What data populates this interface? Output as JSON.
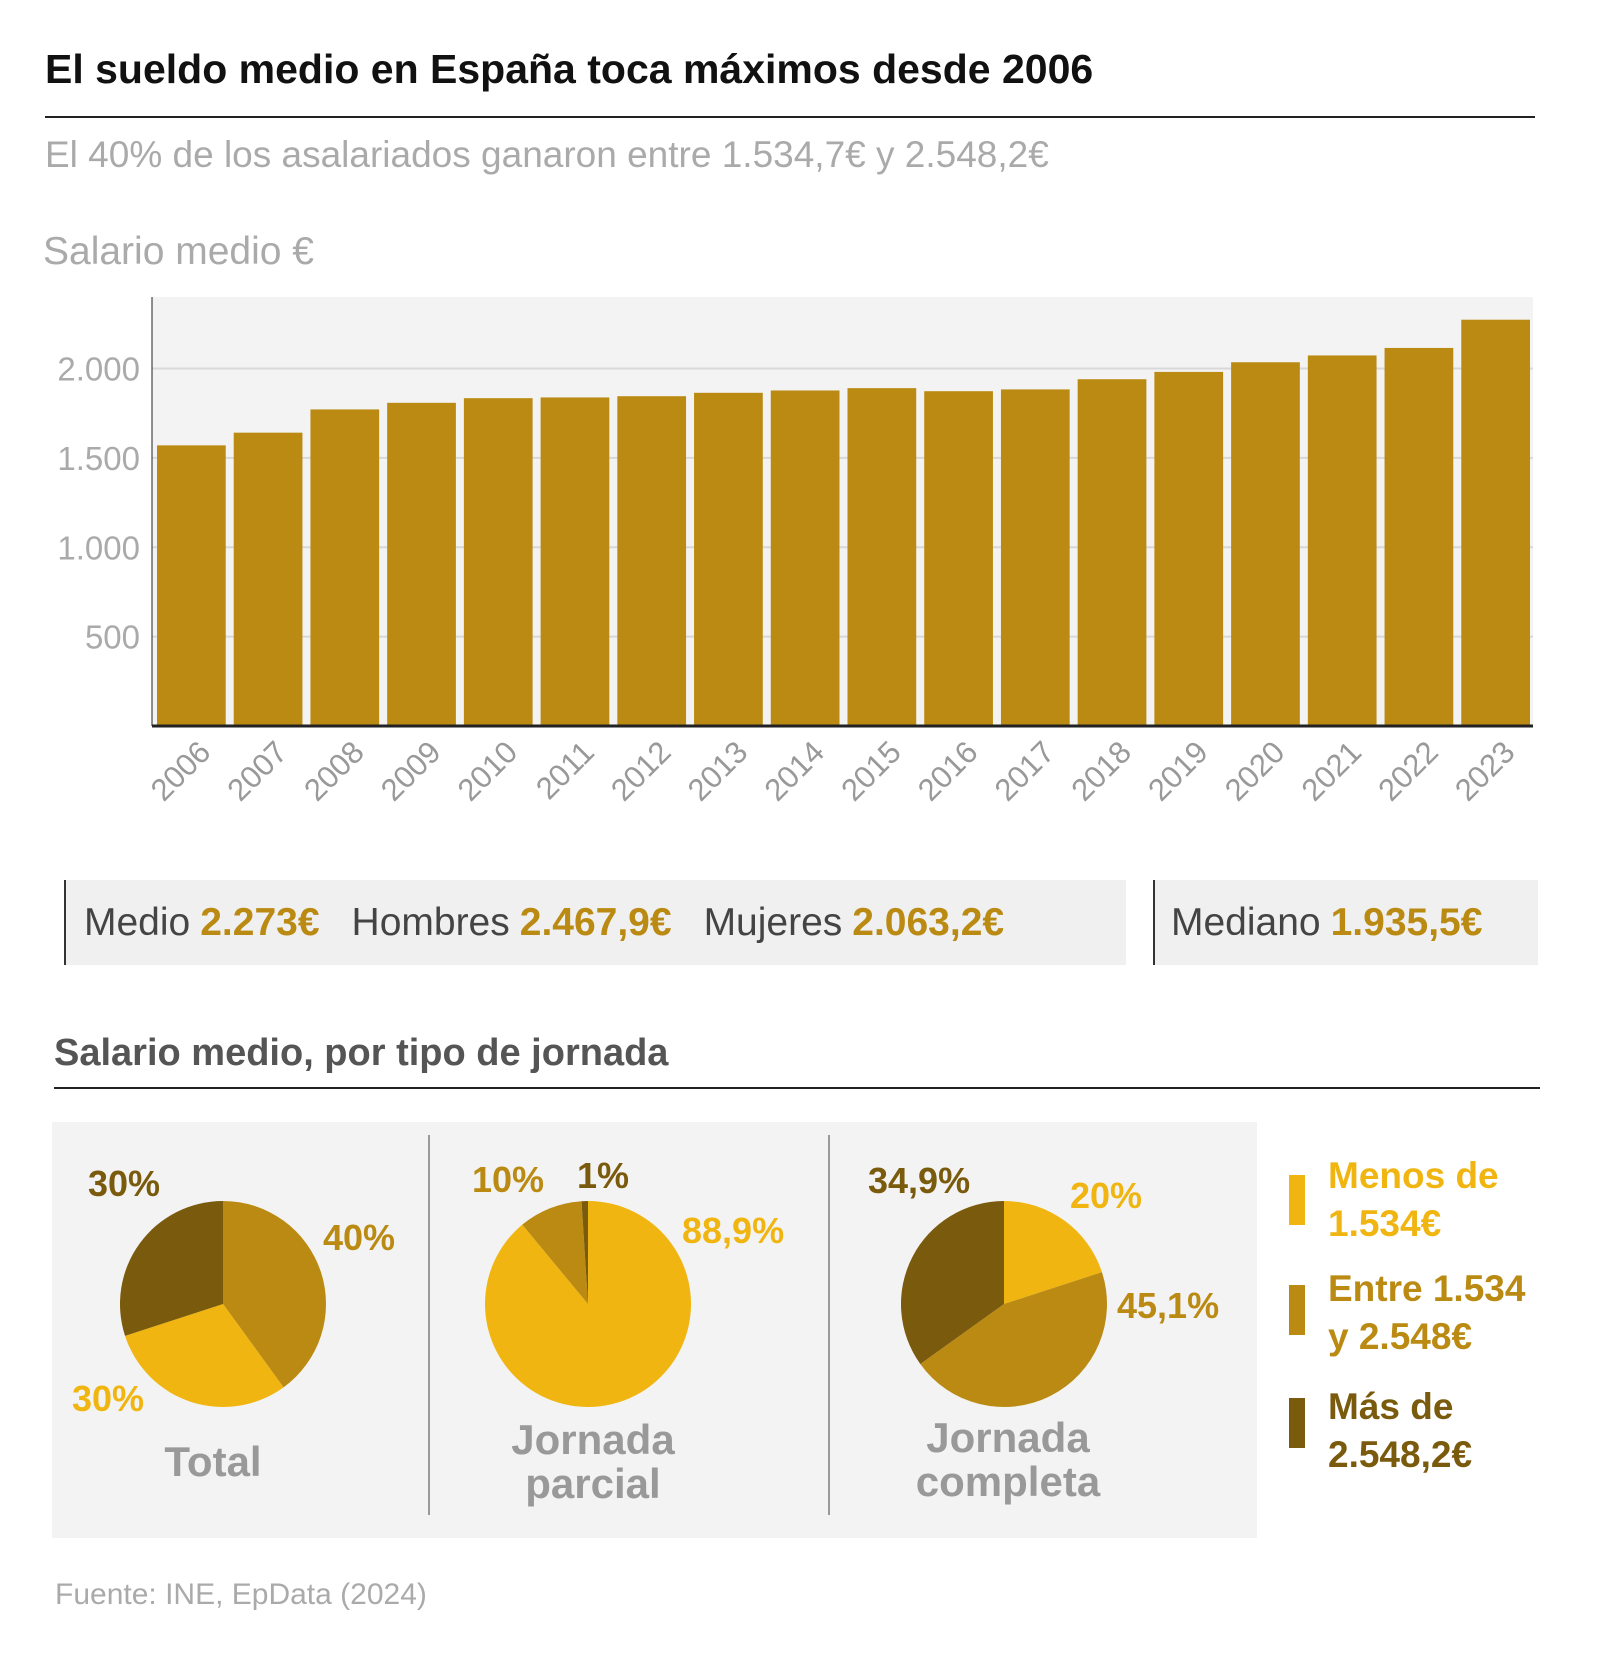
{
  "title": "El sueldo medio en España toca máximos desde 2006",
  "subtitle": "El 40% de los asalariados ganaron entre 1.534,7€ y 2.548,2€",
  "colors": {
    "bar": "#BA8A12",
    "light": "#F0B510",
    "mid": "#BA8A12",
    "dark": "#7A5A0C",
    "grid": "#d8d8d8",
    "bg": "#f3f3f3"
  },
  "chart_data": [
    {
      "type": "bar",
      "title": "",
      "ylabel": "Salario medio €",
      "xlabel": "",
      "ylim": [
        0,
        2400
      ],
      "yticks": [
        500,
        1000,
        1500,
        2000
      ],
      "ytick_labels": [
        "500",
        "1.000",
        "1.500",
        "2.000"
      ],
      "grid": true,
      "categories": [
        "2006",
        "2007",
        "2008",
        "2009",
        "2010",
        "2011",
        "2012",
        "2013",
        "2014",
        "2015",
        "2016",
        "2017",
        "2018",
        "2019",
        "2020",
        "2021",
        "2022",
        "2023"
      ],
      "values": [
        1570,
        1641,
        1771,
        1808,
        1834,
        1838,
        1845,
        1864,
        1877,
        1890,
        1873,
        1883,
        1940,
        1981,
        2035,
        2073,
        2115,
        2273
      ]
    },
    {
      "type": "pie",
      "title": "Total",
      "labels": [
        "Entre 1.534 y 2.548€",
        "Menos de 1.534€",
        "Más de 2.548,2€"
      ],
      "values": [
        40,
        30,
        30
      ],
      "value_labels": [
        "40%",
        "30%",
        "30%"
      ],
      "tones": [
        "mid",
        "light",
        "dark"
      ]
    },
    {
      "type": "pie",
      "title": "Jornada parcial",
      "labels": [
        "Menos de 1.534€",
        "Entre 1.534 y 2.548€",
        "Más de 2.548,2€"
      ],
      "values": [
        88.9,
        10,
        1
      ],
      "value_labels": [
        "88,9%",
        "10%",
        "1%"
      ],
      "tones": [
        "light",
        "mid",
        "dark"
      ]
    },
    {
      "type": "pie",
      "title": "Jornada completa",
      "labels": [
        "Menos de 1.534€",
        "Entre 1.534 y 2.548€",
        "Más de 2.548,2€"
      ],
      "values": [
        20,
        45.1,
        34.9
      ],
      "value_labels": [
        "20%",
        "45,1%",
        "34,9%"
      ],
      "tones": [
        "light",
        "mid",
        "dark"
      ]
    }
  ],
  "stats": {
    "medio_label": "Medio",
    "medio": "2.273€",
    "hombres_label": "Hombres",
    "hombres": "2.467,9€",
    "mujeres_label": "Mujeres",
    "mujeres": "2.063,2€",
    "mediano_label": "Mediano",
    "mediano": "1.935,5€"
  },
  "section_title": "Salario medio, por tipo de jornada",
  "pie_names": {
    "total": "Total",
    "parcial_1": "Jornada",
    "parcial_2": "parcial",
    "completa_1": "Jornada",
    "completa_2": "completa"
  },
  "legend": [
    {
      "line1": "Menos de",
      "line2": "1.534€",
      "tone": "light"
    },
    {
      "line1": "Entre 1.534",
      "line2": "y 2.548€",
      "tone": "mid"
    },
    {
      "line1": "Más de",
      "line2": "2.548,2€",
      "tone": "dark"
    }
  ],
  "footer": "Fuente: INE, EpData (2024)"
}
